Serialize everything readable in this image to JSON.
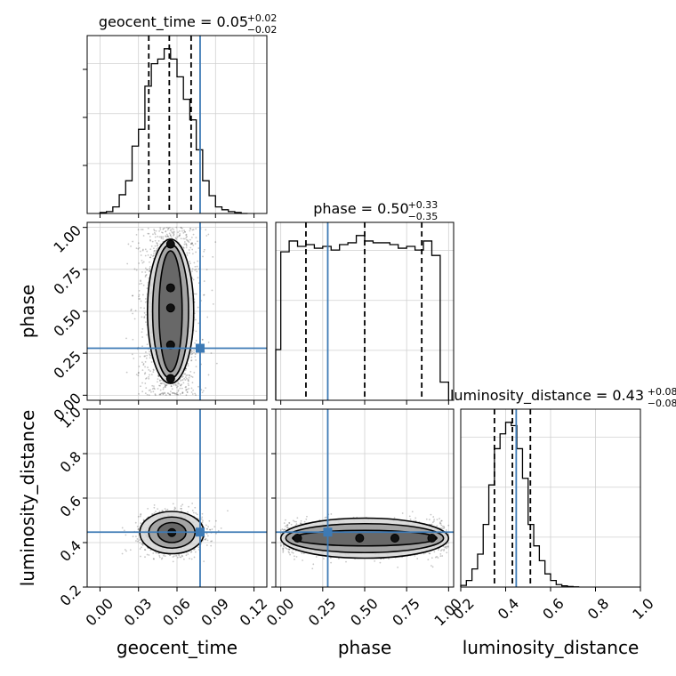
{
  "chart_data": {
    "type": "corner",
    "truth_color": "#3d7ab5",
    "line_color": "#000000",
    "grid": true,
    "parameters": [
      {
        "name": "geocent_time",
        "axis_label": "geocent_time",
        "range": [
          -0.01,
          0.13
        ],
        "ticks": [
          0.0,
          0.03,
          0.06,
          0.09,
          0.12
        ],
        "tick_labels": [
          "0.00",
          "0.03",
          "0.06",
          "0.09",
          "0.12"
        ],
        "truth": 0.078,
        "title_main": "geocent_time = 0.05",
        "title_sup": "+0.02",
        "title_sub": "−0.02",
        "quantiles": [
          0.038,
          0.054,
          0.071
        ],
        "histogram": {
          "edges": [
            0.0,
            0.005,
            0.01,
            0.015,
            0.02,
            0.025,
            0.03,
            0.035,
            0.04,
            0.045,
            0.05,
            0.055,
            0.06,
            0.065,
            0.07,
            0.075,
            0.08,
            0.085,
            0.09,
            0.095,
            0.1,
            0.105,
            0.11,
            0.115
          ],
          "counts": [
            1,
            2,
            7,
            20,
            35,
            72,
            90,
            136,
            160,
            165,
            176,
            165,
            146,
            122,
            100,
            68,
            35,
            19,
            7,
            4,
            2,
            1,
            0
          ]
        }
      },
      {
        "name": "phase",
        "axis_label": "phase",
        "range": [
          -0.03,
          1.03
        ],
        "ticks": [
          0.0,
          0.25,
          0.5,
          0.75,
          1.0
        ],
        "tick_labels": [
          "0.00",
          "0.25",
          "0.50",
          "0.75",
          "1.00"
        ],
        "truth": 0.28,
        "title_main": "phase = 0.50",
        "title_sup": "+0.33",
        "title_sub": "−0.35",
        "quantiles": [
          0.15,
          0.5,
          0.84
        ],
        "histogram": {
          "edges": [
            -0.03,
            0.0,
            0.05,
            0.1,
            0.15,
            0.2,
            0.25,
            0.3,
            0.35,
            0.4,
            0.45,
            0.5,
            0.55,
            0.6,
            0.65,
            0.7,
            0.75,
            0.8,
            0.85,
            0.9,
            0.95,
            1.0
          ],
          "counts": [
            0.28,
            0.82,
            0.88,
            0.85,
            0.86,
            0.84,
            0.85,
            0.83,
            0.86,
            0.87,
            0.91,
            0.88,
            0.87,
            0.87,
            0.86,
            0.84,
            0.85,
            0.83,
            0.88,
            0.8,
            0.1
          ]
        }
      },
      {
        "name": "luminosity_distance",
        "axis_label": "luminosity_distance",
        "range": [
          0.2,
          1.0
        ],
        "ticks": [
          0.2,
          0.4,
          0.6,
          0.8,
          1.0
        ],
        "tick_labels": [
          "0.2",
          "0.4",
          "0.6",
          "0.8",
          "1.0"
        ],
        "truth": 0.447,
        "title_main": "luminosity_distance = 0.43",
        "title_sup": "+0.08",
        "title_sub": "−0.08",
        "quantiles": [
          0.35,
          0.43,
          0.51
        ],
        "histogram": {
          "edges": [
            0.2,
            0.225,
            0.25,
            0.275,
            0.3,
            0.325,
            0.35,
            0.375,
            0.4,
            0.425,
            0.45,
            0.475,
            0.5,
            0.525,
            0.55,
            0.575,
            0.6,
            0.625,
            0.65,
            0.675,
            0.7,
            0.725
          ],
          "counts": [
            0.01,
            0.04,
            0.11,
            0.2,
            0.38,
            0.62,
            0.84,
            0.93,
            1.0,
            0.98,
            0.84,
            0.66,
            0.38,
            0.25,
            0.16,
            0.08,
            0.04,
            0.015,
            0.007,
            0.003,
            0.001
          ]
        }
      }
    ],
    "joint": [
      {
        "x": "geocent_time",
        "y": "phase",
        "center": [
          0.055,
          0.5
        ],
        "spread": [
          0.012,
          0.3
        ],
        "uniform_y": [
          0.0,
          1.0
        ],
        "contour_levels": [
          {
            "rx": 0.018,
            "ry": 0.43,
            "cy": 0.5
          },
          {
            "rx": 0.014,
            "ry": 0.4,
            "cy": 0.5
          },
          {
            "rx": 0.009,
            "ry": 0.36,
            "cy": 0.5
          }
        ],
        "peaks": [
          [
            0.055,
            0.64
          ],
          [
            0.055,
            0.52
          ],
          [
            0.055,
            0.3
          ],
          [
            0.055,
            0.1
          ],
          [
            0.055,
            0.9
          ]
        ]
      },
      {
        "x": "geocent_time",
        "y": "luminosity_distance",
        "center": [
          0.056,
          0.445
        ],
        "spread": [
          0.012,
          0.045
        ],
        "contour_levels": [
          {
            "rx": 0.025,
            "ry": 0.095
          },
          {
            "rx": 0.018,
            "ry": 0.07
          },
          {
            "rx": 0.011,
            "ry": 0.045
          }
        ],
        "peaks": [
          [
            0.056,
            0.445
          ]
        ]
      },
      {
        "x": "phase",
        "y": "luminosity_distance",
        "center": [
          0.5,
          0.42
        ],
        "spread": [
          0.3,
          0.04
        ],
        "uniform_x": [
          0.0,
          1.0
        ],
        "contour_levels": [
          {
            "rx": 0.5,
            "ry": 0.09
          },
          {
            "rx": 0.47,
            "ry": 0.065
          },
          {
            "rx": 0.43,
            "ry": 0.035
          }
        ],
        "peaks": [
          [
            0.1,
            0.42
          ],
          [
            0.47,
            0.42
          ],
          [
            0.68,
            0.42
          ],
          [
            0.9,
            0.42
          ]
        ]
      }
    ]
  }
}
